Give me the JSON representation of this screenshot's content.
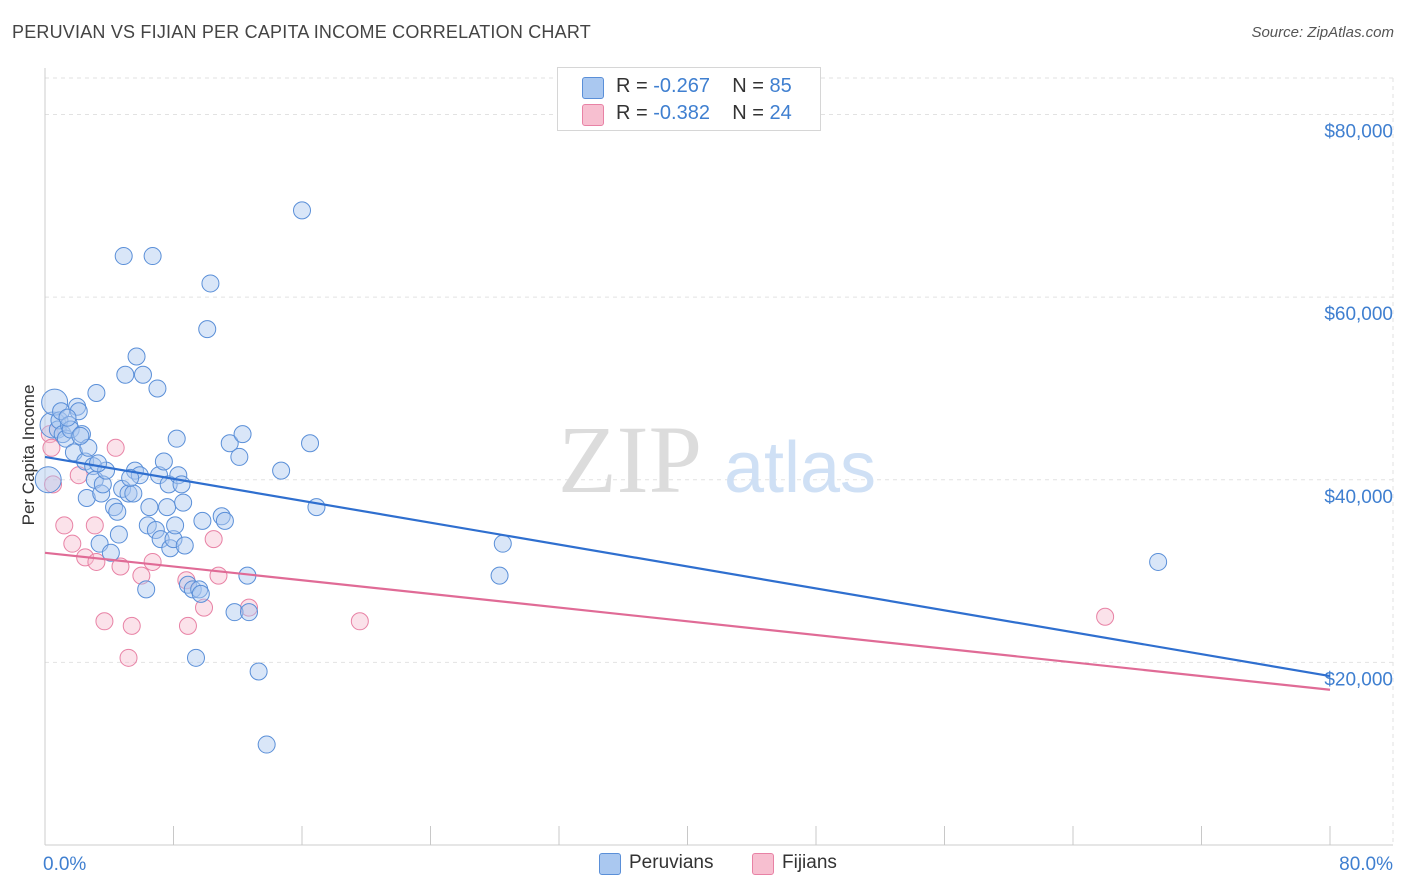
{
  "title": "PERUVIAN VS FIJIAN PER CAPITA INCOME CORRELATION CHART",
  "source": "Source: ZipAtlas.com",
  "watermark": {
    "zip": "ZIP",
    "atlas": "atlas"
  },
  "legend": {
    "peruvians": {
      "r_label": "R =",
      "r_value": "-0.267",
      "n_label": "N =",
      "n_value": "85"
    },
    "fijians": {
      "r_label": "R =",
      "r_value": "-0.382",
      "n_label": "N =",
      "n_value": "24"
    }
  },
  "bottom_legend": {
    "peruvians": "Peruvians",
    "fijians": "Fijians"
  },
  "colors": {
    "peruvians_fill": "#aac8f0",
    "peruvians_stroke": "#5a8fd8",
    "peruvians_line": "#2f6fcf",
    "fijians_fill": "#f7bfd0",
    "fijians_stroke": "#e882a5",
    "fijians_line": "#e06b96",
    "axis_label": "#3f7fd0"
  },
  "chart_data": {
    "type": "scatter",
    "title": "PERUVIAN VS FIJIAN PER CAPITA INCOME CORRELATION CHART",
    "xlabel": "",
    "ylabel": "Per Capita Income",
    "xlim": [
      0,
      80
    ],
    "ylim": [
      0,
      84000
    ],
    "x_tick_labels": [
      "0.0%",
      "80.0%"
    ],
    "y_ticks": [
      20000,
      40000,
      60000,
      80000
    ],
    "y_tick_labels": [
      "$20,000",
      "$40,000",
      "$60,000",
      "$80,000"
    ],
    "grid": true,
    "series": [
      {
        "name": "Peruvians",
        "trend": {
          "x": [
            0,
            80
          ],
          "y": [
            42500,
            18500
          ]
        },
        "points": [
          [
            0.2,
            40000
          ],
          [
            0.5,
            46000
          ],
          [
            0.6,
            48500
          ],
          [
            0.8,
            45500
          ],
          [
            0.9,
            46500
          ],
          [
            1.0,
            47500
          ],
          [
            1.1,
            45000
          ],
          [
            1.3,
            44500
          ],
          [
            1.5,
            46000
          ],
          [
            1.6,
            45500
          ],
          [
            1.8,
            43000
          ],
          [
            2.0,
            48000
          ],
          [
            2.1,
            47500
          ],
          [
            2.3,
            45000
          ],
          [
            2.5,
            42000
          ],
          [
            2.6,
            38000
          ],
          [
            2.7,
            43500
          ],
          [
            3.0,
            41500
          ],
          [
            3.1,
            40000
          ],
          [
            3.2,
            49500
          ],
          [
            3.4,
            33000
          ],
          [
            3.5,
            38500
          ],
          [
            3.6,
            39500
          ],
          [
            3.8,
            41000
          ],
          [
            4.1,
            32000
          ],
          [
            4.3,
            37000
          ],
          [
            4.5,
            36500
          ],
          [
            4.6,
            34000
          ],
          [
            4.8,
            39000
          ],
          [
            4.9,
            64500
          ],
          [
            5.0,
            51500
          ],
          [
            5.2,
            38500
          ],
          [
            5.5,
            38500
          ],
          [
            5.6,
            41000
          ],
          [
            5.7,
            53500
          ],
          [
            5.9,
            40500
          ],
          [
            6.1,
            51500
          ],
          [
            6.3,
            28000
          ],
          [
            6.4,
            35000
          ],
          [
            6.5,
            37000
          ],
          [
            6.7,
            64500
          ],
          [
            6.9,
            34500
          ],
          [
            7.0,
            50000
          ],
          [
            7.1,
            40500
          ],
          [
            7.2,
            33500
          ],
          [
            7.4,
            42000
          ],
          [
            7.6,
            37000
          ],
          [
            7.7,
            39500
          ],
          [
            7.8,
            32500
          ],
          [
            8.0,
            33500
          ],
          [
            8.1,
            35000
          ],
          [
            8.2,
            44500
          ],
          [
            8.3,
            40500
          ],
          [
            8.5,
            39500
          ],
          [
            8.6,
            37500
          ],
          [
            8.9,
            28500
          ],
          [
            9.2,
            28000
          ],
          [
            9.4,
            20500
          ],
          [
            9.6,
            28000
          ],
          [
            9.7,
            27500
          ],
          [
            9.8,
            35500
          ],
          [
            10.1,
            56500
          ],
          [
            10.3,
            61500
          ],
          [
            11.0,
            36000
          ],
          [
            11.2,
            35500
          ],
          [
            11.5,
            44000
          ],
          [
            11.8,
            25500
          ],
          [
            12.1,
            42500
          ],
          [
            12.3,
            45000
          ],
          [
            12.6,
            29500
          ],
          [
            12.7,
            25500
          ],
          [
            13.3,
            19000
          ],
          [
            13.8,
            11000
          ],
          [
            14.7,
            41000
          ],
          [
            16.0,
            69500
          ],
          [
            16.5,
            44000
          ],
          [
            16.9,
            37000
          ],
          [
            28.3,
            29500
          ],
          [
            28.5,
            33000
          ],
          [
            69.3,
            31000
          ],
          [
            1.4,
            46800
          ],
          [
            2.2,
            44800
          ],
          [
            3.3,
            41800
          ],
          [
            5.3,
            40200
          ],
          [
            8.7,
            32800
          ]
        ]
      },
      {
        "name": "Fijians",
        "trend": {
          "x": [
            0,
            80
          ],
          "y": [
            32000,
            17000
          ]
        },
        "points": [
          [
            0.3,
            45000
          ],
          [
            0.4,
            43500
          ],
          [
            0.5,
            39500
          ],
          [
            1.2,
            35000
          ],
          [
            1.7,
            33000
          ],
          [
            2.1,
            40500
          ],
          [
            2.5,
            31500
          ],
          [
            3.1,
            35000
          ],
          [
            3.2,
            31000
          ],
          [
            3.7,
            24500
          ],
          [
            4.4,
            43500
          ],
          [
            4.7,
            30500
          ],
          [
            5.2,
            20500
          ],
          [
            5.4,
            24000
          ],
          [
            6.0,
            29500
          ],
          [
            6.7,
            31000
          ],
          [
            8.8,
            29000
          ],
          [
            8.9,
            24000
          ],
          [
            9.9,
            26000
          ],
          [
            10.5,
            33500
          ],
          [
            10.8,
            29500
          ],
          [
            12.7,
            26000
          ],
          [
            19.6,
            24500
          ],
          [
            66.0,
            25000
          ]
        ]
      }
    ]
  }
}
